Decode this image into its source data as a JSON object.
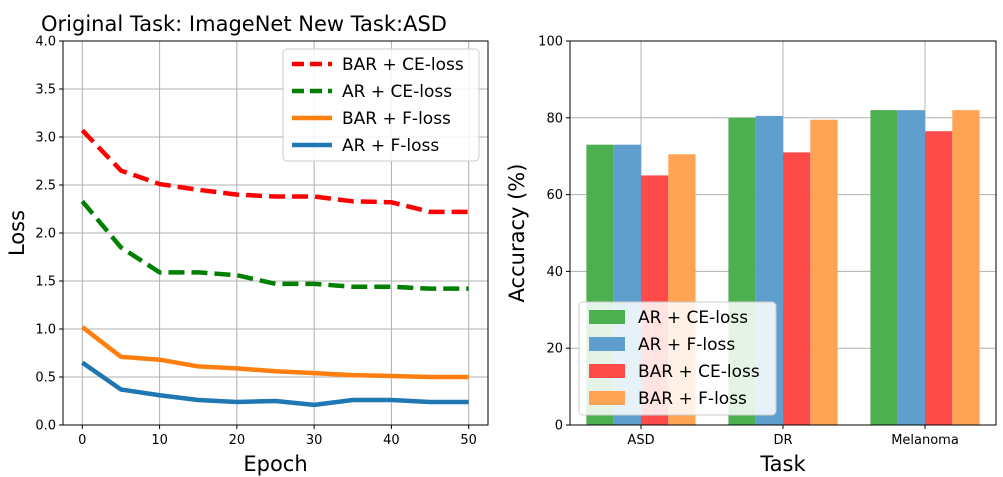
{
  "chart_data": [
    {
      "type": "line",
      "title": "Original Task: ImageNet      New Task:ASD",
      "xlabel": "Epoch",
      "ylabel": "Loss",
      "xlim": [
        -2.5,
        52.5
      ],
      "ylim": [
        0,
        4.0
      ],
      "xticks": [
        0,
        10,
        20,
        30,
        40,
        50
      ],
      "xtick_labels": [
        "0",
        "10",
        "20",
        "30",
        "40",
        "50"
      ],
      "yticks": [
        0,
        0.5,
        1.0,
        1.5,
        2.0,
        2.5,
        3.0,
        3.5,
        4.0
      ],
      "ytick_labels": [
        "0.0",
        "0.5",
        "1.0",
        "1.5",
        "2.0",
        "2.5",
        "3.0",
        "3.5",
        "4.0"
      ],
      "grid": true,
      "legend_position": "top-right",
      "x": [
        0,
        5,
        10,
        15,
        20,
        25,
        30,
        35,
        40,
        45,
        50
      ],
      "series": [
        {
          "name": "BAR + CE-loss",
          "color": "#ff0000",
          "dashed": true,
          "values": [
            3.07,
            2.65,
            2.51,
            2.45,
            2.4,
            2.38,
            2.38,
            2.33,
            2.32,
            2.22,
            2.22
          ]
        },
        {
          "name": "AR + CE-loss",
          "color": "#008000",
          "dashed": true,
          "values": [
            2.33,
            1.85,
            1.59,
            1.59,
            1.56,
            1.47,
            1.47,
            1.44,
            1.44,
            1.42,
            1.42
          ]
        },
        {
          "name": "BAR + F-loss",
          "color": "#ff7f0e",
          "dashed": false,
          "values": [
            1.02,
            0.71,
            0.68,
            0.61,
            0.59,
            0.56,
            0.54,
            0.52,
            0.51,
            0.5,
            0.5
          ]
        },
        {
          "name": "AR + F-loss",
          "color": "#1f77b4",
          "dashed": false,
          "values": [
            0.65,
            0.37,
            0.31,
            0.26,
            0.24,
            0.25,
            0.21,
            0.26,
            0.26,
            0.24,
            0.24
          ]
        }
      ]
    },
    {
      "type": "bar",
      "title": "",
      "xlabel": "Task",
      "ylabel": "Accuracy (%)",
      "ylim": [
        0,
        100
      ],
      "yticks": [
        0,
        20,
        40,
        60,
        80,
        100
      ],
      "ytick_labels": [
        "0",
        "20",
        "40",
        "60",
        "80",
        "100"
      ],
      "grid": true,
      "legend_position": "bottom-left",
      "categories": [
        "ASD",
        "DR",
        "Melanoma"
      ],
      "series": [
        {
          "name": "AR + CE-loss",
          "color": "#4caf50",
          "values": [
            73,
            80,
            82
          ]
        },
        {
          "name": "AR + F-loss",
          "color": "#5f9fcd",
          "values": [
            73,
            80.5,
            82
          ]
        },
        {
          "name": "BAR + CE-loss",
          "color": "#ff4a4a",
          "values": [
            65,
            71,
            76.5
          ]
        },
        {
          "name": "BAR + F-loss",
          "color": "#ffa455",
          "values": [
            70.5,
            79.5,
            82
          ]
        }
      ]
    }
  ]
}
